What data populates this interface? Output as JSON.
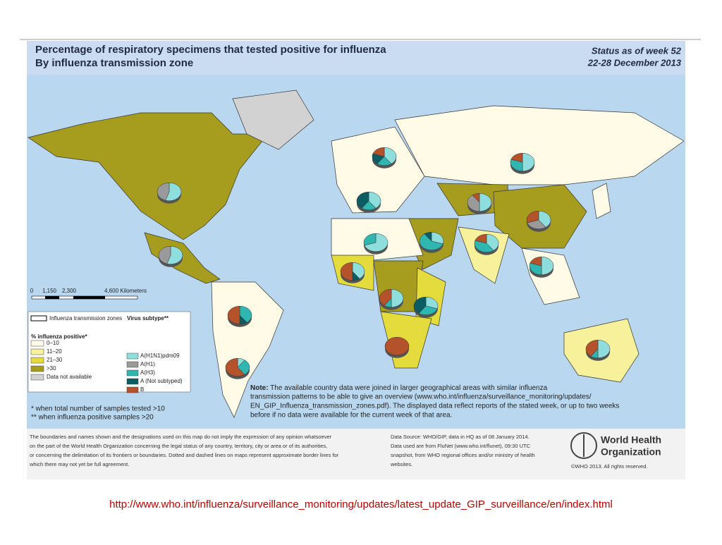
{
  "header": {
    "title": [
      "Percentage of respiratory specimens that tested positive for influenza",
      "By influenza transmission zone"
    ],
    "status": [
      "Status as of week 52",
      "22-28 December 2013"
    ]
  },
  "scale": {
    "labels": [
      "0",
      "1,150",
      "2,300",
      "4,600 Kilometers"
    ]
  },
  "legend": {
    "zones": "Influenza transmission zones",
    "positive_title": "% influenza positive*",
    "classes": [
      {
        "label": "0–10",
        "color": "#fffbe6"
      },
      {
        "label": "11–20",
        "color": "#f6f19a"
      },
      {
        "label": "21–30",
        "color": "#e4db3c"
      },
      {
        "label": ">30",
        "color": "#a69d1e"
      },
      {
        "label": "Data not available",
        "color": "#d2d2d2"
      }
    ],
    "subtype_title": "Virus subtype**",
    "subtypes": [
      {
        "label": "A(H1N1)pdm09",
        "color": "#8fdede"
      },
      {
        "label": "A(H1)",
        "color": "#9a9a9a"
      },
      {
        "label": "A(H3)",
        "color": "#2fb6b0"
      },
      {
        "label": "A (Not subtyped)",
        "color": "#0b5c63"
      },
      {
        "label": "B",
        "color": "#b4532b"
      }
    ]
  },
  "pies": [
    {
      "values": [
        55,
        45,
        0,
        0,
        0
      ]
    },
    {
      "values": [
        55,
        45,
        0,
        0,
        0
      ]
    },
    {
      "values": [
        0,
        0,
        40,
        10,
        50
      ]
    },
    {
      "values": [
        10,
        0,
        30,
        0,
        60
      ]
    },
    {
      "values": [
        40,
        0,
        20,
        20,
        20
      ]
    },
    {
      "values": [
        40,
        0,
        20,
        40,
        0
      ]
    },
    {
      "values": [
        50,
        0,
        30,
        0,
        20
      ]
    },
    {
      "values": [
        50,
        40,
        0,
        0,
        10
      ]
    },
    {
      "values": [
        40,
        30,
        0,
        0,
        30
      ]
    },
    {
      "values": [
        30,
        0,
        60,
        10,
        0
      ]
    },
    {
      "values": [
        70,
        0,
        30,
        0,
        0
      ]
    },
    {
      "values": [
        40,
        0,
        40,
        0,
        20
      ]
    },
    {
      "values": [
        50,
        0,
        30,
        0,
        20
      ]
    },
    {
      "values": [
        40,
        0,
        0,
        10,
        50
      ]
    },
    {
      "values": [
        50,
        0,
        10,
        0,
        40
      ]
    },
    {
      "values": [
        30,
        0,
        30,
        40,
        0
      ]
    },
    {
      "values": [
        0,
        0,
        0,
        0,
        100
      ]
    },
    {
      "values": [
        50,
        0,
        10,
        0,
        40
      ]
    }
  ],
  "note": {
    "label": "Note:",
    "lines": [
      "The available country data were joined in larger geographical areas with similar influenza",
      "transmission patterns to be able to give an overview (www.who.int/influenza/surveillance_monitoring/updates/",
      "EN_GIP_Influenza_transmission_zones.pdf). The displayed data reflect reports of the stated week, or up to two weeks",
      "before if no data were available for the current week of that area."
    ]
  },
  "footnotes": [
    "* when total number of samples tested >10",
    "** when influenza positive samples >20"
  ],
  "disclaimer": [
    "The boundaries and names shown and the designations used on this map do not imply the expression of any opinion whatsoever",
    "on the part of the World Health Organization concerning the legal status of any country, territory, city or area or of its authorities,",
    "or concerning the delimitation of its frontiers or boundaries. Dotted and dashed lines on maps represent approximate border lines for",
    "which there may not yet be full agreement."
  ],
  "source": [
    "Data Source: WHO/GIP, data in HQ as of 08 January 2014.",
    "Data used are from FluNet (www.who.int/flunet), 09:30 UTC",
    "snapshot, from WHO regional offices and/or ministry of health",
    "websites."
  ],
  "who": {
    "name": [
      "World Health",
      "Organization"
    ],
    "copyright": "©WHO 2013. All rights reserved."
  },
  "url": "http://www.who.int/influenza/surveillance_monitoring/updates/latest_update_GIP_surveillance/en/index.html"
}
